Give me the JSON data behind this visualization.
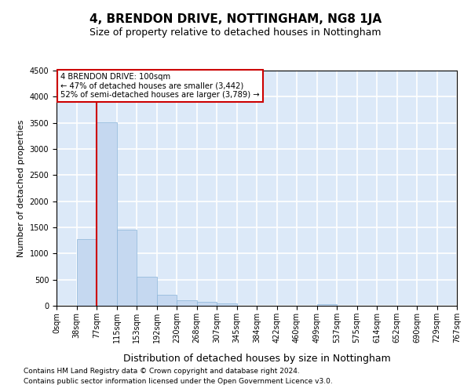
{
  "title": "4, BRENDON DRIVE, NOTTINGHAM, NG8 1JA",
  "subtitle": "Size of property relative to detached houses in Nottingham",
  "xlabel": "Distribution of detached houses by size in Nottingham",
  "ylabel": "Number of detached properties",
  "footnote1": "Contains HM Land Registry data © Crown copyright and database right 2024.",
  "footnote2": "Contains public sector information licensed under the Open Government Licence v3.0.",
  "bin_labels": [
    "0sqm",
    "38sqm",
    "77sqm",
    "115sqm",
    "153sqm",
    "192sqm",
    "230sqm",
    "268sqm",
    "307sqm",
    "345sqm",
    "384sqm",
    "422sqm",
    "460sqm",
    "499sqm",
    "537sqm",
    "575sqm",
    "614sqm",
    "652sqm",
    "690sqm",
    "729sqm",
    "767sqm"
  ],
  "bar_values": [
    5,
    1270,
    3510,
    1450,
    560,
    210,
    100,
    70,
    50,
    0,
    0,
    0,
    0,
    30,
    0,
    0,
    0,
    0,
    0,
    0
  ],
  "bar_color": "#c5d8f0",
  "bar_edge_color": "#8ab4d9",
  "vline_x_bin": 2,
  "vline_color": "#cc0000",
  "ylim": [
    0,
    4500
  ],
  "yticks": [
    0,
    500,
    1000,
    1500,
    2000,
    2500,
    3000,
    3500,
    4000,
    4500
  ],
  "annotation_line1": "4 BRENDON DRIVE: 100sqm",
  "annotation_line2": "← 47% of detached houses are smaller (3,442)",
  "annotation_line3": "52% of semi-detached houses are larger (3,789) →",
  "annotation_box_facecolor": "white",
  "annotation_box_edgecolor": "#cc0000",
  "background_color": "#dce9f8",
  "grid_color": "white",
  "title_fontsize": 11,
  "subtitle_fontsize": 9,
  "ylabel_fontsize": 8,
  "xlabel_fontsize": 9,
  "tick_fontsize": 7,
  "footnote_fontsize": 6.5
}
